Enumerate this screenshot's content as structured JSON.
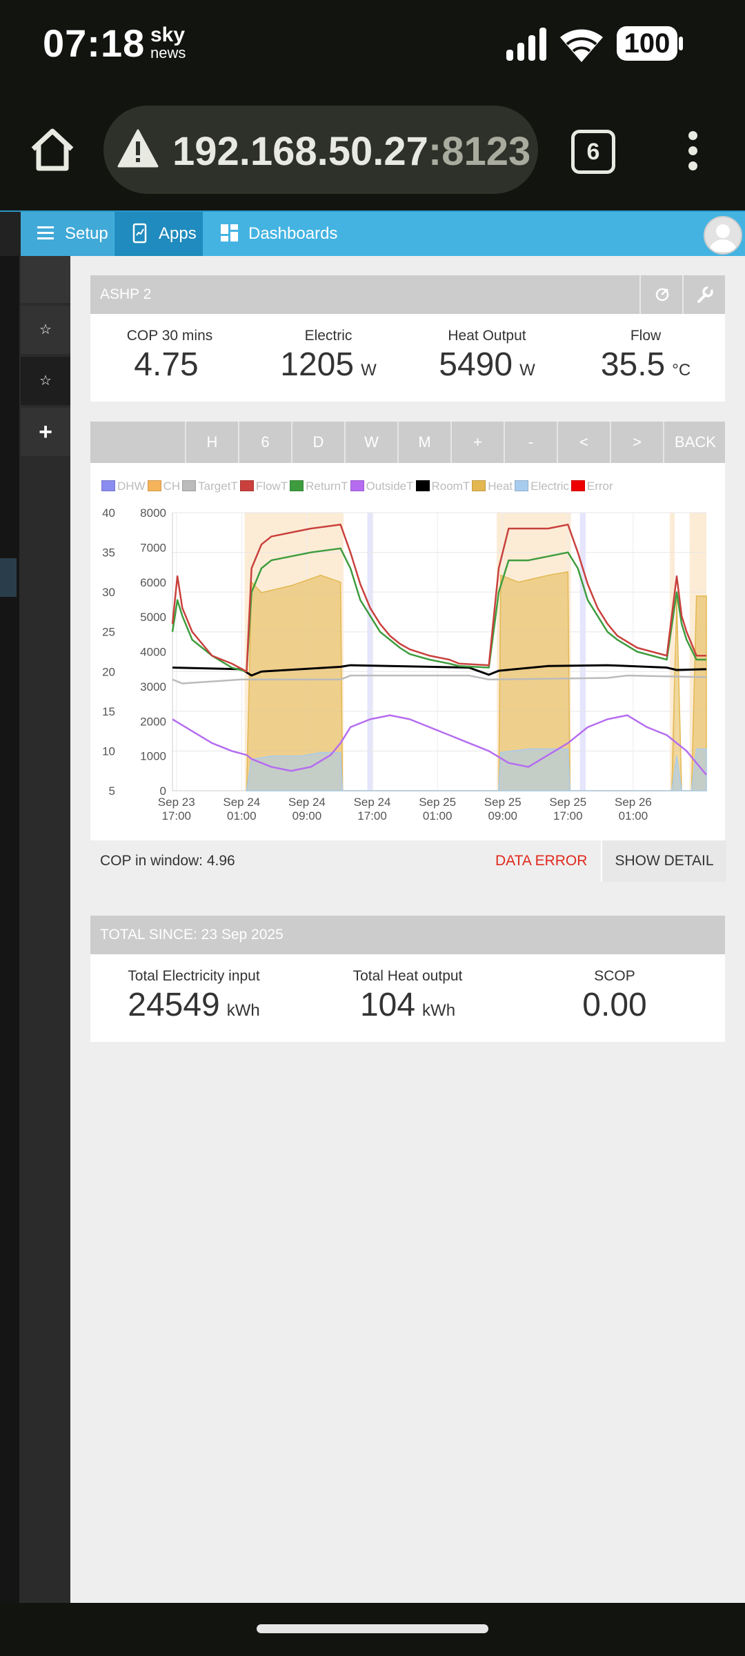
{
  "status_bar": {
    "time": "07:18",
    "logo_top": "sky",
    "logo_bottom": "news",
    "battery": "100",
    "icons": [
      "signal-icon",
      "wifi-icon",
      "battery-icon"
    ]
  },
  "browser": {
    "url_host": "192.168.50.27",
    "url_port": ":8123",
    "tab_count": "6",
    "icons": [
      "home-icon",
      "warning-icon",
      "tabs-icon",
      "menu-icon"
    ]
  },
  "nav": {
    "setup": "Setup",
    "apps": "Apps",
    "dashboards": "Dashboards"
  },
  "sidebar": {
    "star": "☆",
    "plus": "+"
  },
  "card1": {
    "title": "ASHP 2",
    "stats": [
      {
        "label": "COP 30 mins",
        "value": "4.75",
        "unit": ""
      },
      {
        "label": "Electric",
        "value": "1205",
        "unit": "W"
      },
      {
        "label": "Heat Output",
        "value": "5490",
        "unit": "W"
      },
      {
        "label": "Flow",
        "value": "35.5",
        "unit": "°C"
      }
    ]
  },
  "toolbar": {
    "buttons": [
      "H",
      "6",
      "D",
      "W",
      "M",
      "+",
      "-",
      "<",
      ">",
      "BACK"
    ]
  },
  "chart_data": {
    "type": "line",
    "legend": [
      {
        "name": "DHW",
        "color": "#8a8cf0"
      },
      {
        "name": "CH",
        "color": "#f5b35a"
      },
      {
        "name": "TargetT",
        "color": "#bbbbbb"
      },
      {
        "name": "FlowT",
        "color": "#c9403c"
      },
      {
        "name": "ReturnT",
        "color": "#3e9c3e"
      },
      {
        "name": "OutsideT",
        "color": "#b56cf0"
      },
      {
        "name": "RoomT",
        "color": "#000000"
      },
      {
        "name": "Heat",
        "color": "#e3b850"
      },
      {
        "name": "Electric",
        "color": "#a8ccee"
      },
      {
        "name": "Error",
        "color": "#ee0000"
      }
    ],
    "y_left": {
      "min": 5,
      "max": 40,
      "ticks": [
        "40",
        "35",
        "30",
        "25",
        "20",
        "15",
        "10",
        "5"
      ]
    },
    "y_right": {
      "min": 0,
      "max": 8000,
      "ticks": [
        "8000",
        "7000",
        "6000",
        "5000",
        "4000",
        "3000",
        "2000",
        "1000",
        "0"
      ]
    },
    "x_ticks": [
      {
        "line1": "Sep 23",
        "line2": "17:00"
      },
      {
        "line1": "Sep 24",
        "line2": "01:00"
      },
      {
        "line1": "Sep 24",
        "line2": "09:00"
      },
      {
        "line1": "Sep 24",
        "line2": "17:00"
      },
      {
        "line1": "Sep 25",
        "line2": "01:00"
      },
      {
        "line1": "Sep 25",
        "line2": "09:00"
      },
      {
        "line1": "Sep 25",
        "line2": "17:00"
      },
      {
        "line1": "Sep 26",
        "line2": "01:00"
      }
    ],
    "x_range_hours": [
      0,
      54
    ],
    "series": [
      {
        "name": "FlowT",
        "points": [
          [
            0,
            26
          ],
          [
            0.5,
            32
          ],
          [
            1,
            28
          ],
          [
            2,
            25
          ],
          [
            4,
            22
          ],
          [
            6,
            21
          ],
          [
            7.5,
            20
          ],
          [
            8,
            33
          ],
          [
            9,
            36
          ],
          [
            10,
            37
          ],
          [
            12,
            37.5
          ],
          [
            14,
            38
          ],
          [
            17,
            38.5
          ],
          [
            18,
            35
          ],
          [
            19,
            31
          ],
          [
            20,
            28
          ],
          [
            21,
            26
          ],
          [
            22,
            24.5
          ],
          [
            23,
            23.5
          ],
          [
            24,
            22.8
          ],
          [
            26,
            22
          ],
          [
            28,
            21.5
          ],
          [
            29,
            21
          ],
          [
            32,
            20.8
          ],
          [
            33,
            33
          ],
          [
            34,
            38
          ],
          [
            36,
            38
          ],
          [
            38,
            38
          ],
          [
            40,
            38.5
          ],
          [
            41,
            35
          ],
          [
            42,
            31
          ],
          [
            43,
            28
          ],
          [
            44,
            26
          ],
          [
            45,
            24.5
          ],
          [
            47,
            23
          ],
          [
            50,
            22
          ],
          [
            51,
            32
          ],
          [
            51.5,
            27
          ],
          [
            52,
            25
          ],
          [
            53,
            22
          ],
          [
            54,
            22
          ]
        ]
      },
      {
        "name": "ReturnT",
        "points": [
          [
            0,
            25
          ],
          [
            0.5,
            29
          ],
          [
            1,
            27
          ],
          [
            2,
            24
          ],
          [
            4,
            22
          ],
          [
            6,
            20.5
          ],
          [
            7.5,
            20
          ],
          [
            8,
            30
          ],
          [
            9,
            33
          ],
          [
            10,
            34
          ],
          [
            12,
            34.5
          ],
          [
            14,
            35
          ],
          [
            17,
            35.5
          ],
          [
            18,
            33
          ],
          [
            19,
            29
          ],
          [
            20,
            27
          ],
          [
            21,
            25
          ],
          [
            22,
            24
          ],
          [
            23,
            23
          ],
          [
            24,
            22.2
          ],
          [
            26,
            21.5
          ],
          [
            28,
            21
          ],
          [
            29,
            20.7
          ],
          [
            32,
            20.5
          ],
          [
            33,
            30
          ],
          [
            34,
            34
          ],
          [
            36,
            34
          ],
          [
            38,
            34.5
          ],
          [
            40,
            35
          ],
          [
            41,
            33
          ],
          [
            42,
            29
          ],
          [
            43,
            27
          ],
          [
            44,
            25
          ],
          [
            45,
            24
          ],
          [
            47,
            22.5
          ],
          [
            50,
            21.5
          ],
          [
            51,
            30
          ],
          [
            51.5,
            26
          ],
          [
            52,
            24
          ],
          [
            53,
            21.5
          ],
          [
            54,
            21.5
          ]
        ]
      },
      {
        "name": "RoomT",
        "points": [
          [
            0,
            20.5
          ],
          [
            7,
            20.3
          ],
          [
            8,
            19.5
          ],
          [
            9,
            20
          ],
          [
            17,
            20.6
          ],
          [
            18,
            20.8
          ],
          [
            30,
            20.5
          ],
          [
            32,
            19.6
          ],
          [
            33,
            20.1
          ],
          [
            38,
            20.7
          ],
          [
            44,
            20.8
          ],
          [
            50,
            20.5
          ],
          [
            51,
            20.2
          ],
          [
            54,
            20.3
          ]
        ]
      },
      {
        "name": "TargetT",
        "points": [
          [
            0,
            19
          ],
          [
            1,
            18.5
          ],
          [
            7,
            19
          ],
          [
            8,
            19
          ],
          [
            17,
            19
          ],
          [
            18,
            19.5
          ],
          [
            30,
            19.5
          ],
          [
            32,
            19
          ],
          [
            44,
            19.2
          ],
          [
            46,
            19.5
          ],
          [
            50,
            19.4
          ],
          [
            54,
            19.3
          ]
        ]
      },
      {
        "name": "OutsideT",
        "points": [
          [
            0,
            14
          ],
          [
            2,
            12.5
          ],
          [
            4,
            11
          ],
          [
            6,
            10
          ],
          [
            7.5,
            9.5
          ],
          [
            8,
            9
          ],
          [
            10,
            8
          ],
          [
            12,
            7.5
          ],
          [
            14,
            8
          ],
          [
            16,
            9.5
          ],
          [
            17,
            11
          ],
          [
            18,
            13
          ],
          [
            20,
            14
          ],
          [
            22,
            14.5
          ],
          [
            24,
            14
          ],
          [
            26,
            13
          ],
          [
            28,
            12
          ],
          [
            30,
            11
          ],
          [
            32,
            10
          ],
          [
            34,
            8.5
          ],
          [
            36,
            8
          ],
          [
            38,
            9.5
          ],
          [
            40,
            11
          ],
          [
            42,
            13
          ],
          [
            44,
            14
          ],
          [
            46,
            14.5
          ],
          [
            48,
            13
          ],
          [
            50,
            12
          ],
          [
            52,
            10
          ],
          [
            54,
            7
          ]
        ]
      },
      {
        "name": "Heat_W",
        "points": [
          [
            7.5,
            0
          ],
          [
            8,
            6000
          ],
          [
            9,
            5700
          ],
          [
            12,
            5900
          ],
          [
            15,
            6200
          ],
          [
            17,
            6000
          ],
          [
            17.2,
            0
          ],
          [
            33,
            0
          ],
          [
            33.2,
            6200
          ],
          [
            35,
            6000
          ],
          [
            38,
            6200
          ],
          [
            40,
            6300
          ],
          [
            40.2,
            0
          ],
          [
            50.5,
            0
          ],
          [
            51,
            5500
          ],
          [
            51.5,
            0
          ],
          [
            52.5,
            0
          ],
          [
            53,
            5600
          ],
          [
            54,
            5600
          ]
        ]
      },
      {
        "name": "Electric_W",
        "points": [
          [
            7.5,
            0
          ],
          [
            8,
            900
          ],
          [
            10,
            1000
          ],
          [
            13,
            1000
          ],
          [
            15,
            1100
          ],
          [
            17,
            1100
          ],
          [
            17.2,
            0
          ],
          [
            33,
            0
          ],
          [
            33.2,
            1100
          ],
          [
            36,
            1200
          ],
          [
            40,
            1200
          ],
          [
            40.2,
            0
          ],
          [
            50.5,
            0
          ],
          [
            51,
            1000
          ],
          [
            51.5,
            0
          ],
          [
            52.5,
            0
          ],
          [
            53,
            1200
          ],
          [
            54,
            1200
          ]
        ]
      }
    ],
    "bands": [
      {
        "type": "CH",
        "from": 7.3,
        "to": 17.3
      },
      {
        "type": "CH",
        "from": 32.8,
        "to": 40.3
      },
      {
        "type": "CH",
        "from": 50.3,
        "to": 50.8
      },
      {
        "type": "CH",
        "from": 52.3,
        "to": 54
      },
      {
        "type": "DHW",
        "from": 19.7,
        "to": 20.3
      },
      {
        "type": "DHW",
        "from": 41.2,
        "to": 41.8
      }
    ]
  },
  "cop_bar": {
    "label": "COP in window:",
    "value": "4.96",
    "error": "DATA ERROR",
    "detail": "SHOW DETAIL"
  },
  "card2": {
    "title": "TOTAL SINCE: 23 Sep 2025",
    "stats": [
      {
        "label": "Total Electricity input",
        "value": "24549",
        "unit": "kWh"
      },
      {
        "label": "Total Heat output",
        "value": "104",
        "unit": "kWh"
      },
      {
        "label": "SCOP",
        "value": "0.00",
        "unit": ""
      }
    ]
  }
}
